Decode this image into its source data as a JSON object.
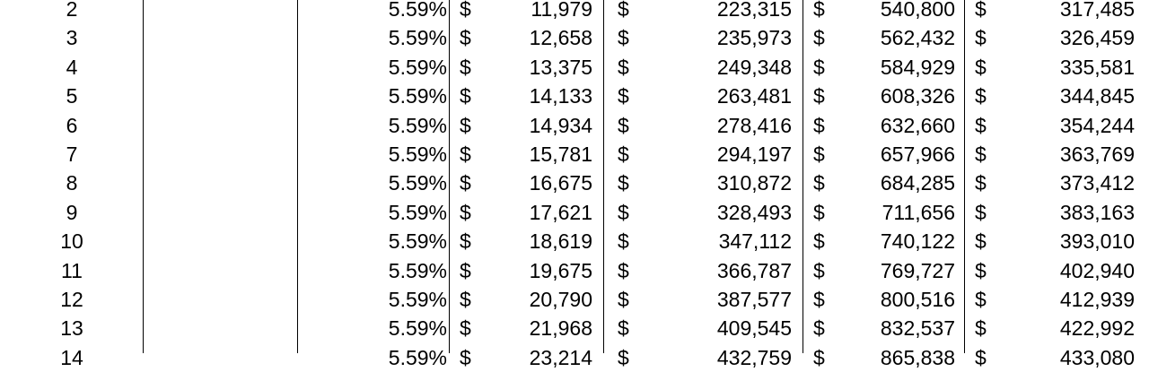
{
  "table": {
    "currency_symbol": "$",
    "rows": [
      {
        "year": "2",
        "rate": "5.59%",
        "col1": "11,979",
        "col2": "223,315",
        "col3": "540,800",
        "col4": "317,485"
      },
      {
        "year": "3",
        "rate": "5.59%",
        "col1": "12,658",
        "col2": "235,973",
        "col3": "562,432",
        "col4": "326,459"
      },
      {
        "year": "4",
        "rate": "5.59%",
        "col1": "13,375",
        "col2": "249,348",
        "col3": "584,929",
        "col4": "335,581"
      },
      {
        "year": "5",
        "rate": "5.59%",
        "col1": "14,133",
        "col2": "263,481",
        "col3": "608,326",
        "col4": "344,845"
      },
      {
        "year": "6",
        "rate": "5.59%",
        "col1": "14,934",
        "col2": "278,416",
        "col3": "632,660",
        "col4": "354,244"
      },
      {
        "year": "7",
        "rate": "5.59%",
        "col1": "15,781",
        "col2": "294,197",
        "col3": "657,966",
        "col4": "363,769"
      },
      {
        "year": "8",
        "rate": "5.59%",
        "col1": "16,675",
        "col2": "310,872",
        "col3": "684,285",
        "col4": "373,412"
      },
      {
        "year": "9",
        "rate": "5.59%",
        "col1": "17,621",
        "col2": "328,493",
        "col3": "711,656",
        "col4": "383,163"
      },
      {
        "year": "10",
        "rate": "5.59%",
        "col1": "18,619",
        "col2": "347,112",
        "col3": "740,122",
        "col4": "393,010"
      },
      {
        "year": "11",
        "rate": "5.59%",
        "col1": "19,675",
        "col2": "366,787",
        "col3": "769,727",
        "col4": "402,940"
      },
      {
        "year": "12",
        "rate": "5.59%",
        "col1": "20,790",
        "col2": "387,577",
        "col3": "800,516",
        "col4": "412,939"
      },
      {
        "year": "13",
        "rate": "5.59%",
        "col1": "21,968",
        "col2": "409,545",
        "col3": "832,537",
        "col4": "422,992"
      },
      {
        "year": "14",
        "rate": "5.59%",
        "col1": "23,214",
        "col2": "432,759",
        "col3": "865,838",
        "col4": "433,080"
      }
    ]
  }
}
